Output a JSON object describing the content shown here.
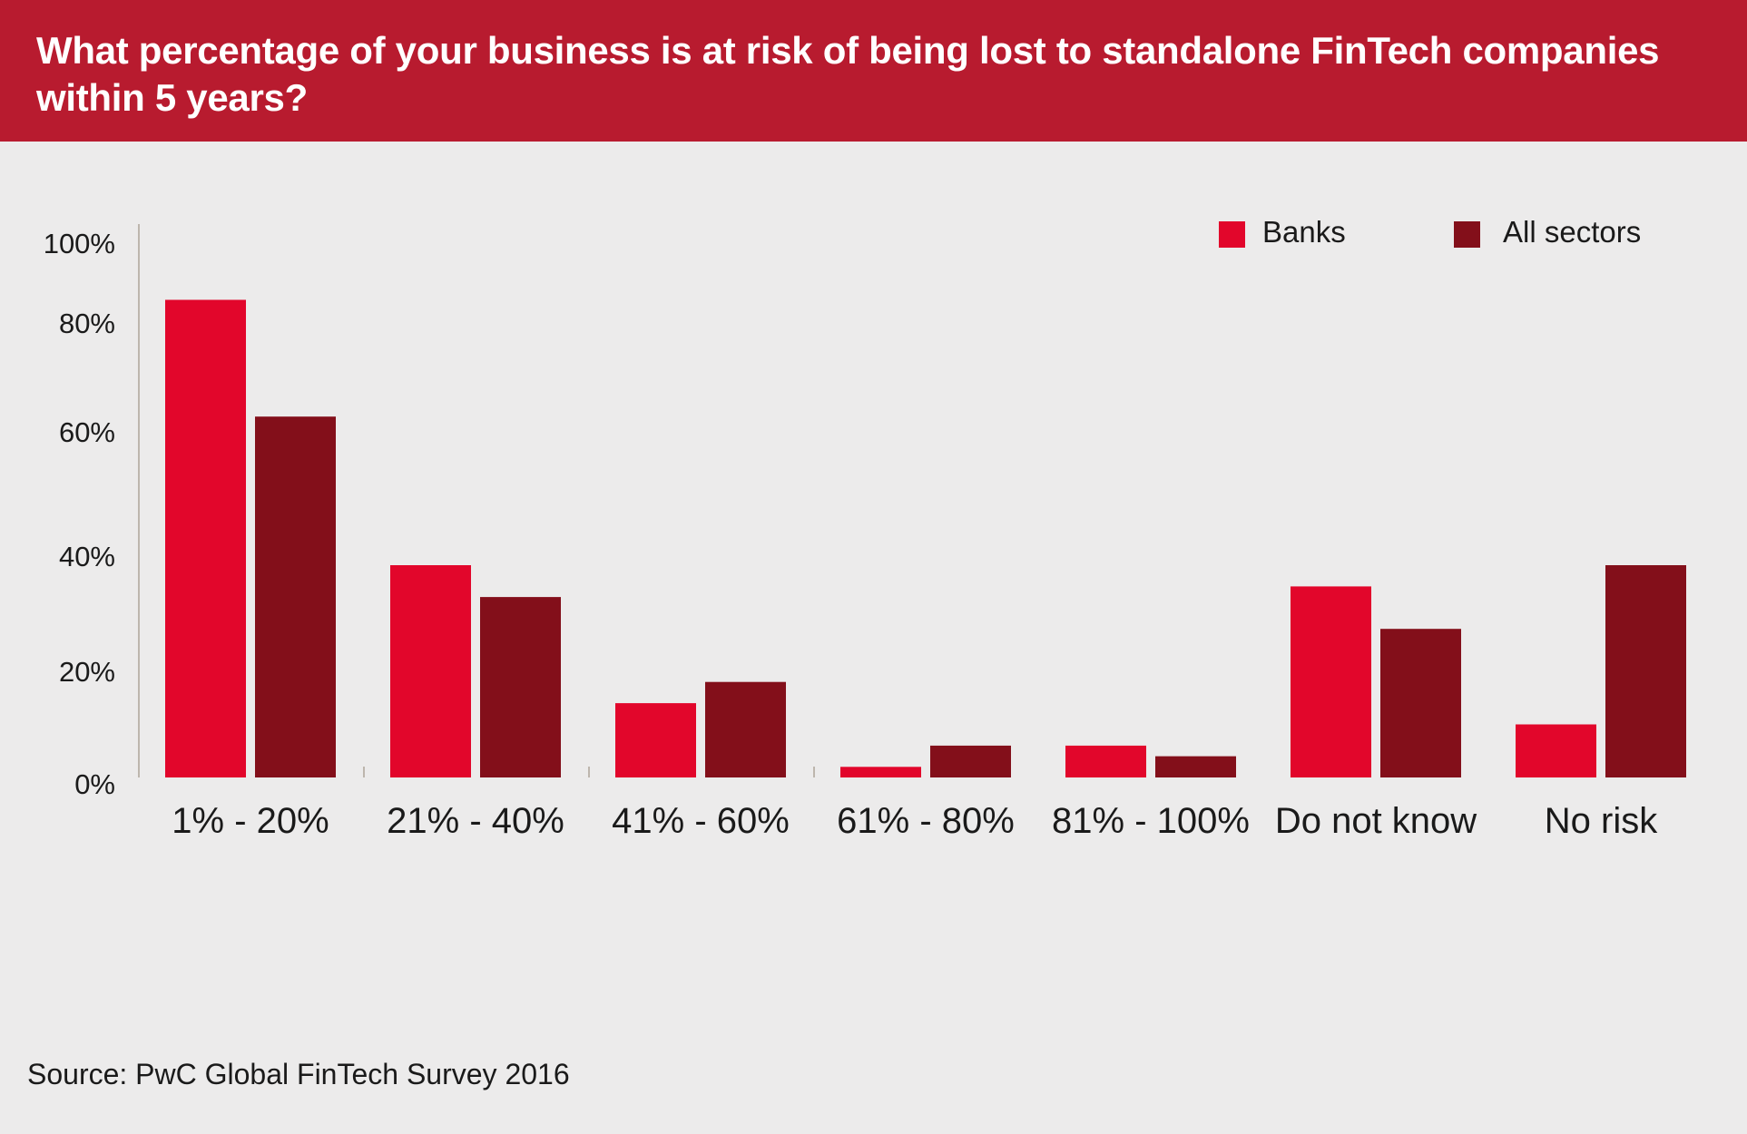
{
  "header": {
    "title": "What percentage of your business is at risk of being lost to standalone FinTech companies within 5 years?"
  },
  "colors": {
    "header_bg": "#B81B2F",
    "banks": "#E2062B",
    "all_sectors": "#830F1A",
    "background": "#ECEBEB"
  },
  "chart_data": {
    "type": "bar",
    "title": "What percentage of your business is at risk of being lost to standalone FinTech companies within 5 years?",
    "categories": [
      "1% - 20%",
      "21% - 40%",
      "41% - 60%",
      "61% - 80%",
      "81% - 100%",
      "Do not know",
      "No risk"
    ],
    "series": [
      {
        "name": "Banks",
        "values": [
          90,
          40,
          14,
          2,
          6,
          36,
          10
        ]
      },
      {
        "name": "All sectors",
        "values": [
          68,
          34,
          18,
          6,
          4,
          28,
          40
        ]
      }
    ],
    "yticks": [
      "0%",
      "20%",
      "40%",
      "60%",
      "80%",
      "100%"
    ],
    "ylim": [
      0,
      100
    ],
    "xlabel": "",
    "ylabel": "",
    "grid": false,
    "legend": "top-right"
  },
  "source": "Source: PwC Global FinTech Survey 2016"
}
